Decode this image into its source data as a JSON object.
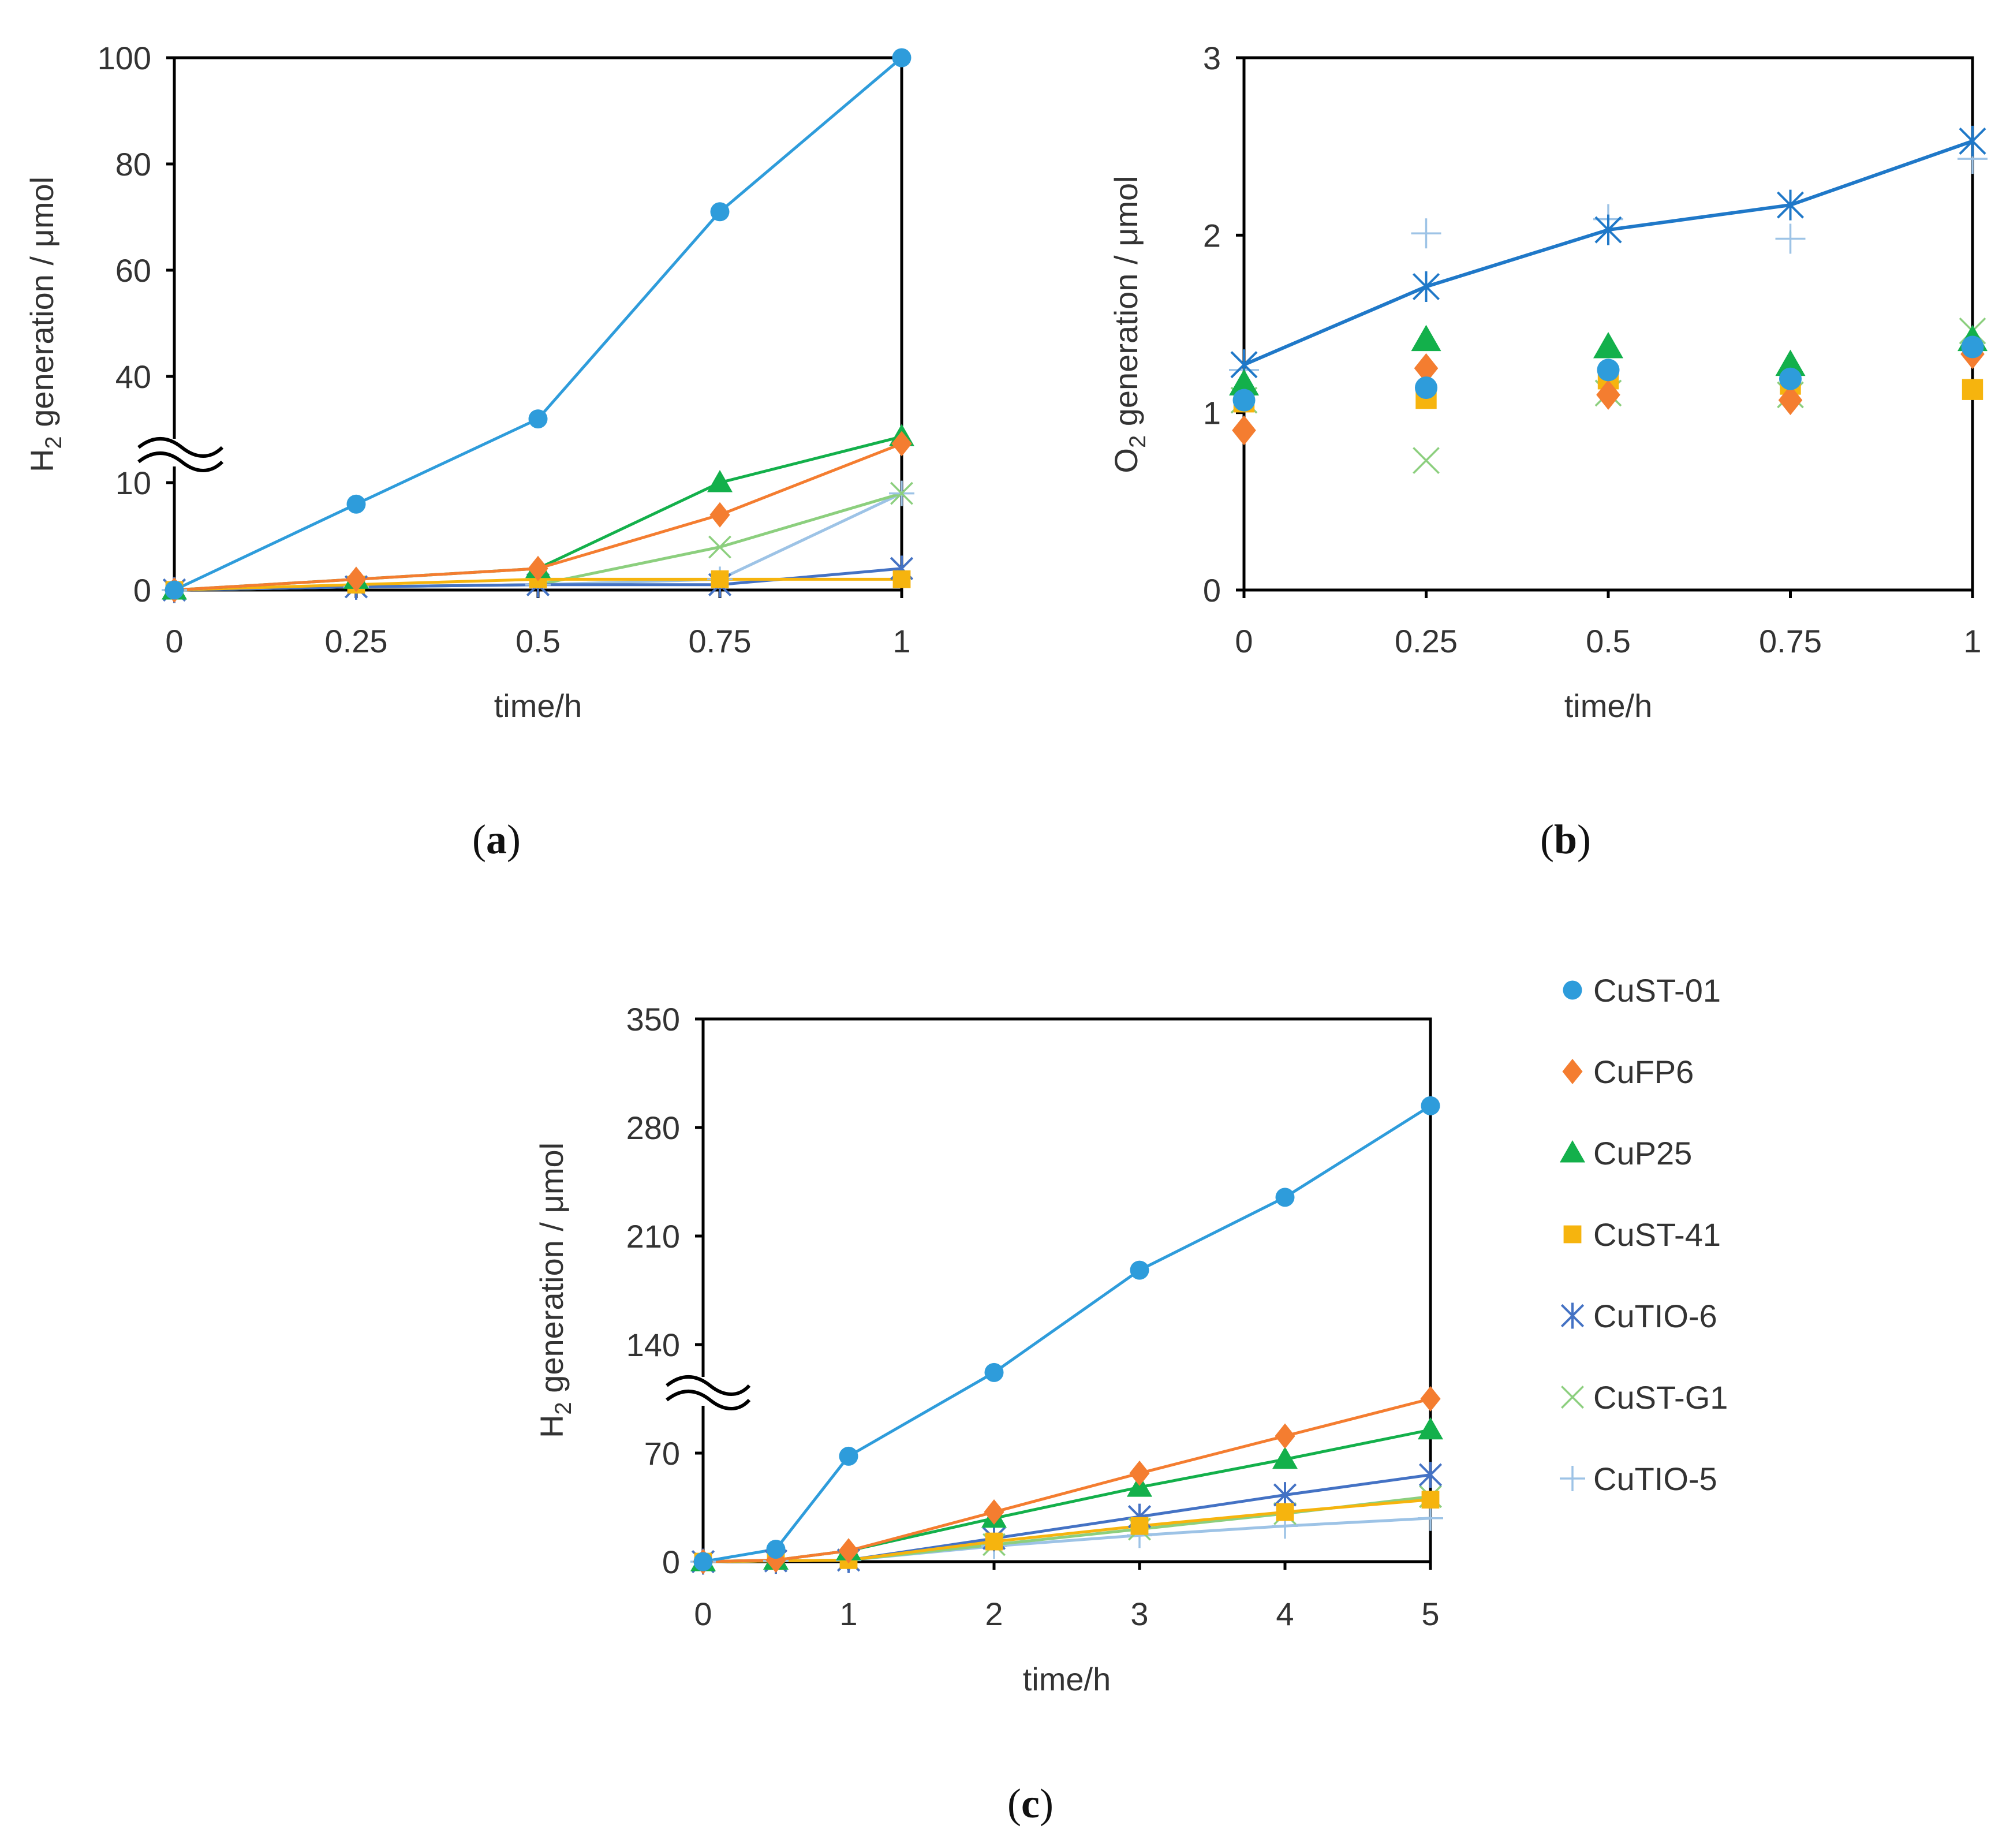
{
  "colors": {
    "CuST-01": "#2e9cdb",
    "CuFP6": "#f47d30",
    "CuP25": "#13b04b",
    "CuST-41": "#f6b40e",
    "CuTIO-6": "#4472c4",
    "CuST-G1": "#8ccf7e",
    "CuTIO-5": "#9dc3e6",
    "O2_line": "#1f78c8"
  },
  "legend": {
    "items": [
      {
        "name": "CuST-01",
        "marker": "circle"
      },
      {
        "name": "CuFP6",
        "marker": "diamond"
      },
      {
        "name": "CuP25",
        "marker": "triangle"
      },
      {
        "name": "CuST-41",
        "marker": "square"
      },
      {
        "name": "CuTIO-6",
        "marker": "asterisk"
      },
      {
        "name": "CuST-G1",
        "marker": "x"
      },
      {
        "name": "CuTIO-5",
        "marker": "plus"
      }
    ]
  },
  "chart_data": [
    {
      "panel": "(a)",
      "panel_letter": "a",
      "type": "line",
      "xlabel": "time/h",
      "ylabel_main": "H",
      "ylabel_sub": "2",
      "ylabel_rest": " generation / μmol",
      "axis_break": true,
      "x": [
        0,
        0.25,
        0.5,
        0.75,
        1
      ],
      "xtick_labels": [
        "0",
        "0.25",
        "0.5",
        "0.75",
        "1"
      ],
      "ytick_labels": [
        "0",
        "10",
        "40",
        "60",
        "80",
        "100"
      ],
      "series": [
        {
          "name": "CuST-01",
          "values": [
            0,
            8,
            28,
            71,
            100
          ]
        },
        {
          "name": "CuFP6",
          "values": [
            0,
            1,
            2,
            7,
            21
          ]
        },
        {
          "name": "CuP25",
          "values": [
            0,
            1,
            2,
            10,
            23
          ]
        },
        {
          "name": "CuST-41",
          "values": [
            0,
            0.5,
            1,
            1,
            1
          ]
        },
        {
          "name": "CuTIO-6",
          "values": [
            0,
            0.3,
            0.5,
            0.5,
            2
          ]
        },
        {
          "name": "CuST-G1",
          "values": [
            0,
            0.3,
            0.5,
            4,
            9
          ]
        },
        {
          "name": "CuTIO-5",
          "values": [
            0,
            0.3,
            0.5,
            1,
            9
          ]
        }
      ]
    },
    {
      "panel": "(b)",
      "panel_letter": "b",
      "type": "scatter",
      "xlabel": "time/h",
      "ylabel_main": "O",
      "ylabel_sub": "2",
      "ylabel_rest": " generation / μmol",
      "x": [
        0,
        0.25,
        0.5,
        0.75,
        1
      ],
      "xtick_labels": [
        "0",
        "0.25",
        "0.5",
        "0.75",
        "1"
      ],
      "ylim": [
        0,
        3
      ],
      "ytick_labels": [
        "0",
        "1",
        "2",
        "3"
      ],
      "series": [
        {
          "name": "CuST-01",
          "values": [
            1.07,
            1.14,
            1.24,
            1.19,
            1.37
          ]
        },
        {
          "name": "CuFP6",
          "values": [
            0.9,
            1.25,
            1.1,
            1.07,
            1.33
          ]
        },
        {
          "name": "CuP25",
          "values": [
            1.16,
            1.41,
            1.37,
            1.27,
            1.41
          ]
        },
        {
          "name": "CuST-41",
          "values": [
            1.06,
            1.08,
            1.19,
            1.16,
            1.13
          ]
        },
        {
          "name": "CuTIO-6",
          "values": [
            1.27,
            1.71,
            2.03,
            2.17,
            2.53
          ],
          "line": true
        },
        {
          "name": "CuST-G1",
          "values": [
            1.07,
            0.73,
            1.11,
            1.1,
            1.46
          ]
        },
        {
          "name": "CuTIO-5",
          "values": [
            1.24,
            2.01,
            2.09,
            1.98,
            2.43
          ]
        }
      ]
    },
    {
      "panel": "(c)",
      "panel_letter": "c",
      "type": "line",
      "xlabel": "time/h",
      "ylabel_main": "H",
      "ylabel_sub": "2",
      "ylabel_rest": " generation / μmol",
      "axis_break": true,
      "x": [
        0,
        0.5,
        1,
        2,
        3,
        4,
        5
      ],
      "xtick_labels": [
        "0",
        "1",
        "2",
        "3",
        "4",
        "5"
      ],
      "ylim": [
        0,
        350
      ],
      "ytick_labels": [
        "0",
        "70",
        "140",
        "210",
        "280",
        "350"
      ],
      "series": [
        {
          "name": "CuST-01",
          "values": [
            0,
            8,
            68,
            122,
            188,
            235,
            294
          ]
        },
        {
          "name": "CuFP6",
          "values": [
            0,
            1,
            7,
            32,
            57,
            81,
            105
          ]
        },
        {
          "name": "CuP25",
          "values": [
            0,
            1,
            7,
            28,
            48,
            66,
            85
          ]
        },
        {
          "name": "CuST-41",
          "values": [
            0,
            0.5,
            1,
            13,
            23,
            32,
            40
          ]
        },
        {
          "name": "CuTIO-6",
          "values": [
            0,
            0.5,
            1,
            15,
            29,
            43,
            56
          ]
        },
        {
          "name": "CuST-G1",
          "values": [
            0,
            0.5,
            1,
            11,
            21,
            31,
            42
          ]
        },
        {
          "name": "CuTIO-5",
          "values": [
            0,
            0.5,
            1,
            10,
            17,
            23,
            28
          ]
        }
      ]
    }
  ]
}
